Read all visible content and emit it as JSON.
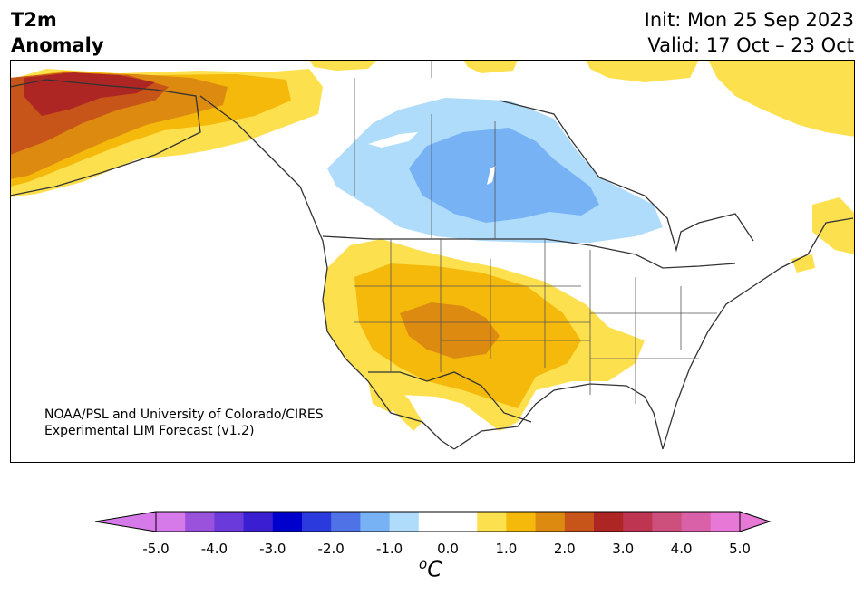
{
  "header": {
    "variable_line1": "T2m",
    "variable_line2": "Anomaly",
    "init": "Init: Mon 25 Sep 2023",
    "valid": "Valid: 17 Oct – 23 Oct"
  },
  "credit": {
    "line1": "NOAA/PSL and University of Colorado/CIRES",
    "line2": "Experimental LIM Forecast (v1.2)"
  },
  "colorbar": {
    "ticks": [
      "-5.0",
      "-4.0",
      "-3.0",
      "-2.0",
      "-1.0",
      "0.0",
      "1.0",
      "2.0",
      "3.0",
      "4.0",
      "5.0"
    ],
    "unit_sup": "o",
    "unit_main": "C",
    "bins": [
      "#d57ae8",
      "#9a52dc",
      "#6a3ada",
      "#3a1fd2",
      "#0000cc",
      "#2a3adc",
      "#4f72e6",
      "#77b2f5",
      "#afdcfb",
      "#ffffff",
      "#ffffff",
      "#fde04e",
      "#f5b90c",
      "#dd8a10",
      "#c75418",
      "#ae2623",
      "#bd3550",
      "#cd4f7c",
      "#d961a8",
      "#e878d6"
    ],
    "under_color": "#d57ae8",
    "over_color": "#e878d6"
  },
  "map": {
    "anomaly_colors": {
      "light_yellow": "#fde04e",
      "gold": "#f5b90c",
      "orange": "#dd8a10",
      "dark_orange": "#c75418",
      "red": "#ae2623",
      "light_blue": "#afdcfb",
      "medium_blue": "#77b2f5"
    }
  }
}
